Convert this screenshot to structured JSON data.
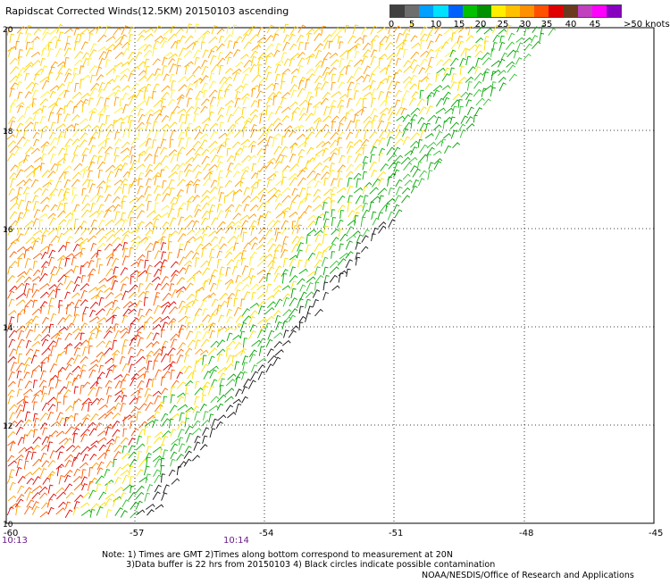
{
  "title": "Rapidscat Corrected Winds(12.5KM) 20150103 ascending",
  "legend": {
    "colors": [
      "#404040",
      "#6e6e6e",
      "#00a0ff",
      "#00e0ff",
      "#0060ff",
      "#00c000",
      "#009000",
      "#ffee00",
      "#ffc000",
      "#ff9000",
      "#ff5000",
      "#e00000",
      "#6b3a1e",
      "#c040c0",
      "#ff00ff",
      "#8a00c0"
    ],
    "labels": [
      "0",
      "5",
      "10",
      "15",
      "20",
      "25",
      "30",
      "35",
      "40",
      "45"
    ],
    "units": ">50 knots"
  },
  "axes": {
    "lon_ticks": [
      "-60",
      "-57",
      "-54",
      "-51",
      "-48",
      "-45"
    ],
    "lat_ticks": [
      "10",
      "12",
      "14",
      "16",
      "18",
      "20"
    ]
  },
  "times": {
    "left": "10:13",
    "middle": "10:14"
  },
  "notes": "Note: 1) Times are GMT 2)Times along bottom correspond to measurement at 20N\n         3)Data buffer is 22 hrs from 20150103 4) Black circles indicate possible contamination",
  "credit": "NOAA/NESDIS/Office of Research and Applications"
}
